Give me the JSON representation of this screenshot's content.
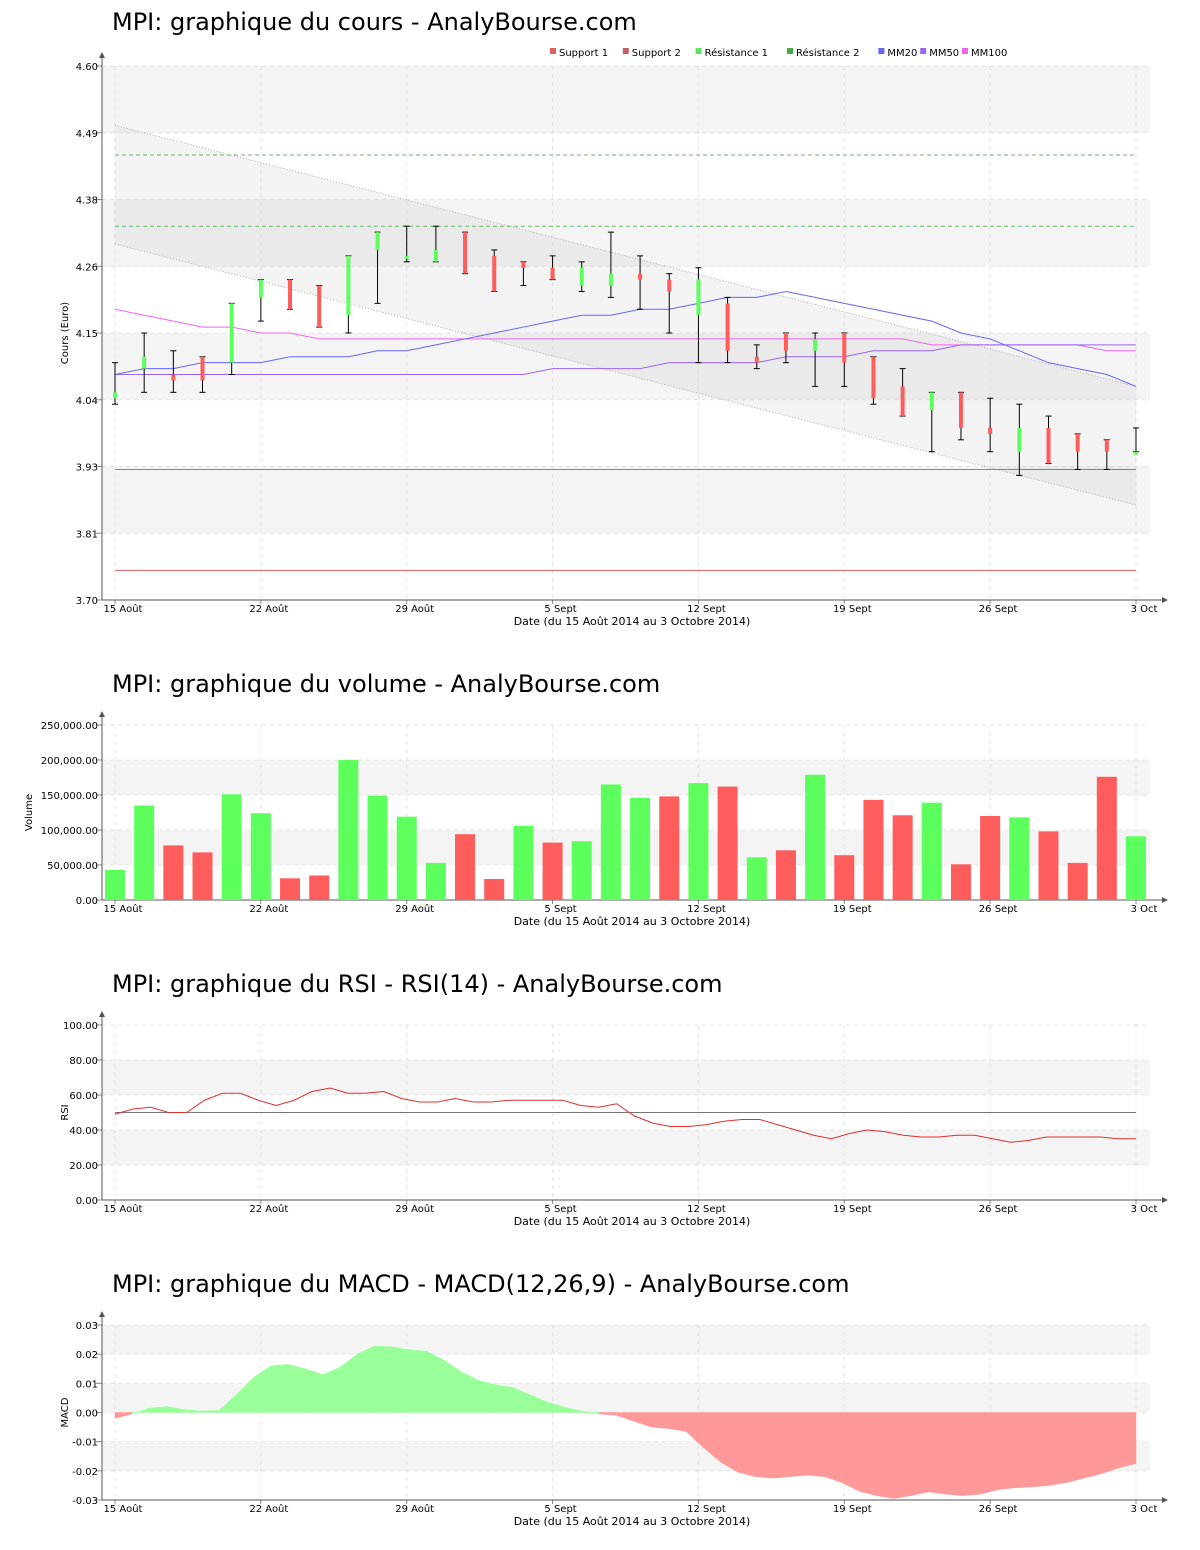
{
  "colors": {
    "up": "#5CFF5C",
    "down": "#FF5C5C",
    "support": "#E06060",
    "resistance": "#66BB66",
    "mm20": "#6666EE",
    "mm50": "#9966EE",
    "mm100": "#EE66EE",
    "rsi": "#E03030",
    "macd_pos": "#99FF99",
    "macd_neg": "#FF9999"
  },
  "xaxis": {
    "label": "Date (du 15 Août 2014 au 3 Octobre 2014)",
    "ticks": [
      "15 Août",
      "22 Août",
      "29 Août",
      "5 Sept",
      "12 Sept",
      "19 Sept",
      "26 Sept",
      "3 Oct"
    ]
  },
  "chart_data": [
    {
      "id": "price",
      "type": "candlestick",
      "title": "MPI: graphique du cours - AnalyBourse.com",
      "ylabel": "Cours (Euro)",
      "ylim": [
        3.7,
        4.6
      ],
      "yticks": [
        "3.70",
        "3.81",
        "3.93",
        "4.04",
        "4.15",
        "4.26",
        "4.38",
        "4.49",
        "4.60"
      ],
      "legend": [
        {
          "name": "Support 1",
          "color": "#E06060"
        },
        {
          "name": "Support 2",
          "color": "#C06060"
        },
        {
          "name": "Résistance 1",
          "color": "#66DD66"
        },
        {
          "name": "Résistance 2",
          "color": "#44AA44"
        },
        {
          "name": "MM20",
          "color": "#6666EE"
        },
        {
          "name": "MM50",
          "color": "#9966EE"
        },
        {
          "name": "MM100",
          "color": "#EE66EE"
        }
      ],
      "support": [
        3.92,
        3.75
      ],
      "resistance": [
        4.33,
        4.45
      ],
      "candles": [
        {
          "o": 4.04,
          "h": 4.1,
          "l": 4.03,
          "c": 4.05
        },
        {
          "o": 4.09,
          "h": 4.15,
          "l": 4.05,
          "c": 4.11
        },
        {
          "o": 4.08,
          "h": 4.12,
          "l": 4.05,
          "c": 4.07
        },
        {
          "o": 4.11,
          "h": 4.11,
          "l": 4.05,
          "c": 4.07
        },
        {
          "o": 4.1,
          "h": 4.2,
          "l": 4.08,
          "c": 4.2
        },
        {
          "o": 4.21,
          "h": 4.24,
          "l": 4.17,
          "c": 4.24
        },
        {
          "o": 4.24,
          "h": 4.24,
          "l": 4.19,
          "c": 4.19
        },
        {
          "o": 4.23,
          "h": 4.23,
          "l": 4.16,
          "c": 4.16
        },
        {
          "o": 4.18,
          "h": 4.28,
          "l": 4.15,
          "c": 4.28
        },
        {
          "o": 4.29,
          "h": 4.32,
          "l": 4.2,
          "c": 4.32
        },
        {
          "o": 4.28,
          "h": 4.33,
          "l": 4.27,
          "c": 4.28
        },
        {
          "o": 4.27,
          "h": 4.33,
          "l": 4.27,
          "c": 4.29
        },
        {
          "o": 4.32,
          "h": 4.32,
          "l": 4.25,
          "c": 4.25
        },
        {
          "o": 4.28,
          "h": 4.29,
          "l": 4.22,
          "c": 4.22
        },
        {
          "o": 4.27,
          "h": 4.27,
          "l": 4.23,
          "c": 4.26
        },
        {
          "o": 4.26,
          "h": 4.28,
          "l": 4.24,
          "c": 4.24
        },
        {
          "o": 4.23,
          "h": 4.27,
          "l": 4.22,
          "c": 4.26
        },
        {
          "o": 4.23,
          "h": 4.32,
          "l": 4.21,
          "c": 4.25
        },
        {
          "o": 4.25,
          "h": 4.28,
          "l": 4.19,
          "c": 4.24
        },
        {
          "o": 4.24,
          "h": 4.25,
          "l": 4.15,
          "c": 4.22
        },
        {
          "o": 4.18,
          "h": 4.26,
          "l": 4.1,
          "c": 4.24
        },
        {
          "o": 4.2,
          "h": 4.21,
          "l": 4.1,
          "c": 4.12
        },
        {
          "o": 4.11,
          "h": 4.13,
          "l": 4.09,
          "c": 4.1
        },
        {
          "o": 4.15,
          "h": 4.15,
          "l": 4.1,
          "c": 4.12
        },
        {
          "o": 4.12,
          "h": 4.15,
          "l": 4.06,
          "c": 4.14
        },
        {
          "o": 4.15,
          "h": 4.15,
          "l": 4.06,
          "c": 4.1
        },
        {
          "o": 4.11,
          "h": 4.11,
          "l": 4.03,
          "c": 4.04
        },
        {
          "o": 4.06,
          "h": 4.09,
          "l": 4.01,
          "c": 4.01
        },
        {
          "o": 4.02,
          "h": 4.05,
          "l": 3.95,
          "c": 4.05
        },
        {
          "o": 4.05,
          "h": 4.05,
          "l": 3.97,
          "c": 3.99
        },
        {
          "o": 3.99,
          "h": 4.04,
          "l": 3.95,
          "c": 3.98
        },
        {
          "o": 3.95,
          "h": 4.03,
          "l": 3.91,
          "c": 3.99
        },
        {
          "o": 3.99,
          "h": 4.01,
          "l": 3.93,
          "c": 3.93
        },
        {
          "o": 3.98,
          "h": 3.98,
          "l": 3.92,
          "c": 3.95
        },
        {
          "o": 3.97,
          "h": 3.97,
          "l": 3.92,
          "c": 3.95
        },
        {
          "o": 3.95,
          "h": 3.99,
          "l": 3.95,
          "c": 3.95
        }
      ],
      "mm20": [
        4.08,
        4.09,
        4.09,
        4.1,
        4.1,
        4.1,
        4.11,
        4.11,
        4.11,
        4.12,
        4.12,
        4.13,
        4.14,
        4.15,
        4.16,
        4.17,
        4.18,
        4.18,
        4.19,
        4.19,
        4.2,
        4.21,
        4.21,
        4.22,
        4.21,
        4.2,
        4.19,
        4.18,
        4.17,
        4.15,
        4.14,
        4.12,
        4.1,
        4.09,
        4.08,
        4.06
      ],
      "mm50": [
        4.08,
        4.08,
        4.08,
        4.08,
        4.08,
        4.08,
        4.08,
        4.08,
        4.08,
        4.08,
        4.08,
        4.08,
        4.08,
        4.08,
        4.08,
        4.09,
        4.09,
        4.09,
        4.09,
        4.1,
        4.1,
        4.1,
        4.1,
        4.11,
        4.11,
        4.11,
        4.12,
        4.12,
        4.12,
        4.13,
        4.13,
        4.13,
        4.13,
        4.13,
        4.13,
        4.13
      ],
      "mm100": [
        4.19,
        4.18,
        4.17,
        4.16,
        4.16,
        4.15,
        4.15,
        4.14,
        4.14,
        4.14,
        4.14,
        4.14,
        4.14,
        4.14,
        4.14,
        4.14,
        4.14,
        4.14,
        4.14,
        4.14,
        4.14,
        4.14,
        4.14,
        4.14,
        4.14,
        4.14,
        4.14,
        4.14,
        4.13,
        4.13,
        4.13,
        4.13,
        4.13,
        4.13,
        4.12,
        4.12
      ],
      "channel": {
        "upper": [
          4.5,
          4.06
        ],
        "lower": [
          4.3,
          3.86
        ]
      }
    },
    {
      "id": "volume",
      "type": "bar",
      "title": "MPI: graphique du volume - AnalyBourse.com",
      "ylabel": "Volume",
      "ylim": [
        0,
        250000
      ],
      "yticks": [
        "0.00",
        "50,000.00",
        "100,000.00",
        "150,000.00",
        "200,000.00",
        "250,000.00"
      ],
      "values": [
        43000,
        135000,
        78000,
        68000,
        151000,
        124000,
        31000,
        35000,
        200000,
        149000,
        119000,
        53000,
        94000,
        30000,
        106000,
        82000,
        84000,
        165000,
        146000,
        148000,
        167000,
        162000,
        61000,
        71000,
        179000,
        64000,
        143000,
        121000,
        139000,
        51000,
        120000,
        118000,
        98000,
        53000,
        176000,
        91000
      ],
      "direction": [
        "up",
        "up",
        "down",
        "down",
        "up",
        "up",
        "down",
        "down",
        "up",
        "up",
        "up",
        "up",
        "down",
        "down",
        "up",
        "down",
        "up",
        "up",
        "up",
        "down",
        "up",
        "down",
        "up",
        "down",
        "up",
        "down",
        "down",
        "down",
        "up",
        "down",
        "down",
        "up",
        "down",
        "down",
        "down",
        "up"
      ]
    },
    {
      "id": "rsi",
      "type": "line",
      "title": "MPI: graphique du RSI - RSI(14) - AnalyBourse.com",
      "ylabel": "RSI",
      "ylim": [
        0,
        100
      ],
      "yticks": [
        "0.00",
        "20.00",
        "40.00",
        "60.00",
        "80.00",
        "100.00"
      ],
      "reference": 50,
      "values": [
        49,
        52,
        53,
        50,
        50,
        57,
        61,
        61,
        57,
        54,
        57,
        62,
        64,
        61,
        61,
        62,
        58,
        56,
        56,
        58,
        56,
        56,
        57,
        57,
        57,
        57,
        54,
        53,
        55,
        48,
        44,
        42,
        42,
        43,
        45,
        46,
        46,
        43,
        40,
        37,
        35,
        38,
        40,
        39,
        37,
        36,
        36,
        37,
        37,
        35,
        33,
        34,
        36,
        36,
        36,
        36,
        35,
        35
      ]
    },
    {
      "id": "macd",
      "type": "area",
      "title": "MPI: graphique du MACD - MACD(12,26,9) - AnalyBourse.com",
      "ylabel": "MACD",
      "ylim": [
        -0.03,
        0.03
      ],
      "yticks": [
        "-0.03",
        "-0.02",
        "-0.01",
        "0.00",
        "0.01",
        "0.02",
        "0.03"
      ],
      "values": [
        -0.002,
        -0.0005,
        0.0015,
        0.002,
        0.001,
        0.0005,
        0.0007,
        0.006,
        0.012,
        0.016,
        0.0165,
        0.015,
        0.013,
        0.0155,
        0.02,
        0.0228,
        0.0225,
        0.0215,
        0.021,
        0.018,
        0.014,
        0.011,
        0.0095,
        0.0085,
        0.006,
        0.0035,
        0.0018,
        0.0005,
        -0.0005,
        -0.001,
        -0.003,
        -0.005,
        -0.0055,
        -0.0065,
        -0.012,
        -0.017,
        -0.0205,
        -0.022,
        -0.0225,
        -0.022,
        -0.0215,
        -0.022,
        -0.024,
        -0.027,
        -0.0285,
        -0.0295,
        -0.0285,
        -0.0272,
        -0.028,
        -0.0285,
        -0.028,
        -0.0265,
        -0.0258,
        -0.0255,
        -0.025,
        -0.024,
        -0.0225,
        -0.021,
        -0.019,
        -0.0175
      ]
    }
  ]
}
